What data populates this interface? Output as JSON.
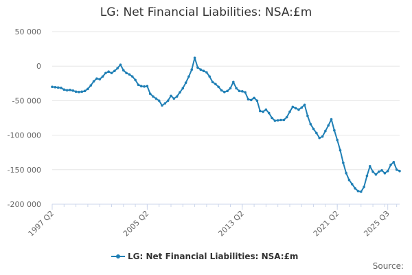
{
  "chart_data": {
    "type": "line",
    "title": "LG: Net Financial Liabilities: NSA:£m",
    "xlabel": "",
    "ylabel": "",
    "ylim": [
      -200000,
      50000
    ],
    "y_ticks": [
      50000,
      0,
      -50000,
      -100000,
      -150000,
      -200000
    ],
    "y_tick_labels": [
      "50 000",
      "0",
      "-50 000",
      "-100 000",
      "-150 000",
      "-200 000"
    ],
    "x_tick_labels": [
      "1997 Q2",
      "2005 Q2",
      "2013 Q2",
      "2021 Q2",
      "2025 Q3"
    ],
    "x_tick_index": [
      0,
      32,
      64,
      96,
      113
    ],
    "legend": "LG: Net Financial Liabilities: NSA:£m",
    "legend_position": "bottom-center",
    "source_label": "Source:",
    "color": "#1f7fb5",
    "series": [
      {
        "name": "LG: Net Financial Liabilities: NSA:£m",
        "start": "1997 Q2",
        "values": [
          -30000,
          -30500,
          -31000,
          -31500,
          -34000,
          -35000,
          -34500,
          -35500,
          -37000,
          -37500,
          -37000,
          -36000,
          -33000,
          -28000,
          -22000,
          -18000,
          -19000,
          -15000,
          -10000,
          -8000,
          -10000,
          -7000,
          -3000,
          2000,
          -6000,
          -10000,
          -12000,
          -15000,
          -20000,
          -27000,
          -29000,
          -29500,
          -29000,
          -40000,
          -44000,
          -47000,
          -50000,
          -57000,
          -54000,
          -50000,
          -43000,
          -47000,
          -44000,
          -38000,
          -32000,
          -24000,
          -15000,
          -5000,
          12000,
          -2000,
          -5000,
          -7000,
          -9000,
          -15000,
          -23000,
          -26000,
          -30000,
          -35000,
          -37500,
          -36000,
          -32000,
          -23000,
          -32000,
          -36000,
          -36500,
          -38000,
          -48000,
          -49000,
          -46000,
          -50000,
          -65000,
          -66000,
          -63000,
          -68000,
          -75000,
          -79000,
          -78500,
          -78000,
          -78000,
          -74000,
          -66000,
          -59000,
          -61000,
          -63000,
          -60000,
          -56000,
          -72000,
          -84000,
          -91000,
          -97000,
          -104000,
          -102000,
          -94000,
          -86000,
          -77000,
          -93000,
          -107000,
          -122000,
          -140000,
          -155000,
          -165000,
          -171000,
          -177000,
          -181000,
          -182000,
          -175000,
          -159000,
          -145000,
          -153000,
          -157000,
          -153000,
          -151000,
          -155000,
          -152000,
          -143000,
          -139000,
          -150000,
          -152000
        ]
      }
    ]
  }
}
